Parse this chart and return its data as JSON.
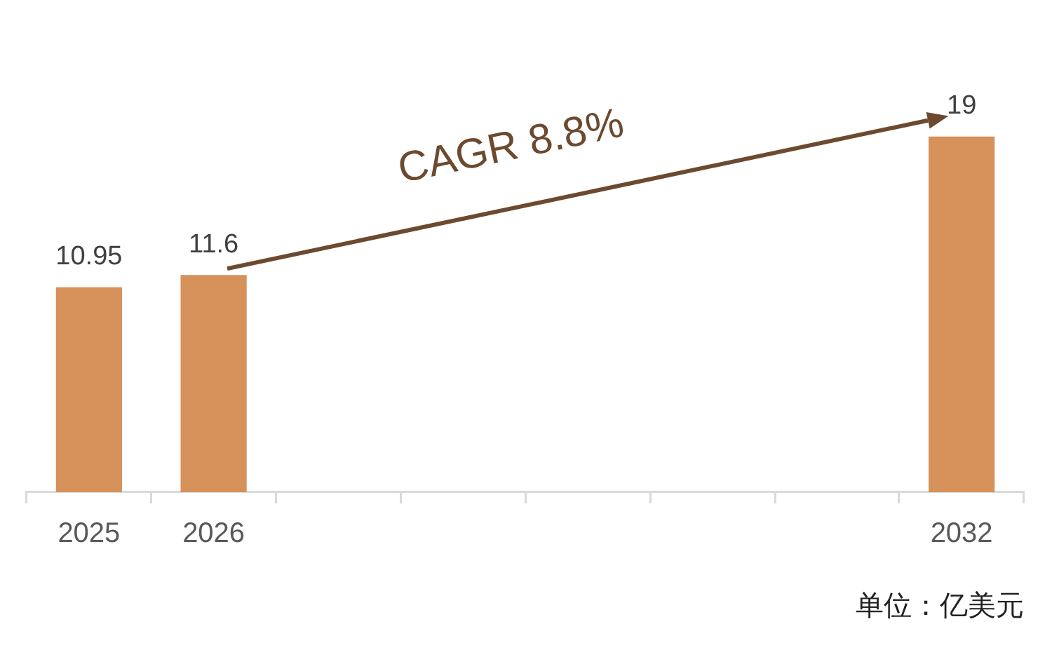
{
  "chart_data": {
    "type": "bar",
    "categories": [
      "2025",
      "2026",
      null,
      null,
      null,
      null,
      null,
      "2032"
    ],
    "values": [
      10.95,
      11.6,
      null,
      null,
      null,
      null,
      null,
      19
    ],
    "color": "#d7915a",
    "data_labels": true,
    "annotations": [
      "CAGR 8.8%",
      "单位：亿美元"
    ]
  }
}
